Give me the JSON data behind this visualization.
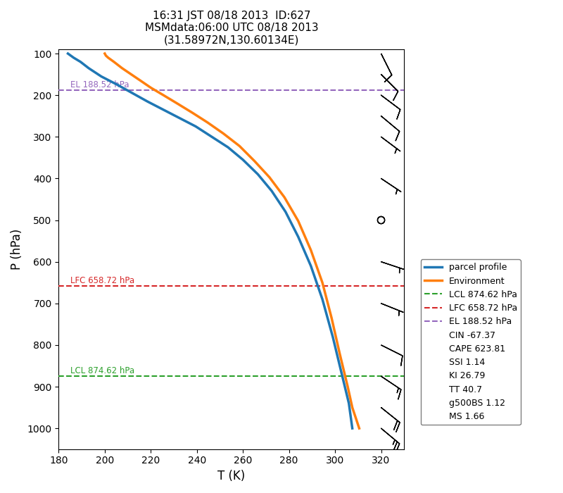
{
  "title": "16:31 JST 08/18 2013  ID:627\nMSMdata:06:00 UTC 08/18 2013\n(31.58972N,130.60134E)",
  "xlabel": "T (K)",
  "ylabel": "P (hPa)",
  "xlim": [
    180,
    330
  ],
  "ylim": [
    1050,
    90
  ],
  "xticks": [
    180,
    200,
    220,
    240,
    260,
    280,
    300,
    320
  ],
  "yticks": [
    100,
    200,
    300,
    400,
    500,
    600,
    700,
    800,
    900,
    1000
  ],
  "parcel_T": [
    184.0,
    186.5,
    189.5,
    193.0,
    198.5,
    205.5,
    212.0,
    218.5,
    225.5,
    232.5,
    239.5,
    246.5,
    253.5,
    260.0,
    266.5,
    272.5,
    278.5,
    284.0,
    289.5,
    294.5,
    299.0,
    302.5,
    306.0,
    307.5
  ],
  "parcel_P": [
    100,
    110,
    120,
    135,
    155,
    175,
    195,
    215,
    235,
    255,
    275,
    300,
    325,
    355,
    390,
    430,
    480,
    540,
    610,
    690,
    780,
    860,
    940,
    1000
  ],
  "env_T": [
    200.0,
    200.5,
    201.5,
    204.0,
    207.5,
    211.5,
    215.5,
    220.0,
    225.5,
    231.5,
    238.0,
    244.5,
    251.5,
    258.5,
    265.0,
    271.5,
    278.0,
    284.0,
    289.5,
    294.5,
    298.5,
    302.0,
    305.5,
    307.5,
    310.5
  ],
  "env_P": [
    100,
    105,
    110,
    120,
    135,
    150,
    165,
    182,
    200,
    220,
    242,
    265,
    292,
    322,
    358,
    397,
    445,
    502,
    572,
    650,
    735,
    820,
    900,
    950,
    1000
  ],
  "lcl_p": 874.62,
  "lfc_p": 658.72,
  "el_p": 188.52,
  "parcel_color": "#1f77b4",
  "env_color": "#ff7f0e",
  "lcl_color": "#2ca02c",
  "lfc_color": "#d62728",
  "el_color": "#9467bd",
  "legend_text_items": [
    "CIN -67.37",
    "CAPE 623.81",
    "SSI 1.14",
    "KI 26.79",
    "TT 40.7",
    "g500BS 1.12",
    "MS 1.66"
  ],
  "barb_pressures": [
    100,
    150,
    200,
    250,
    300,
    400,
    500,
    600,
    700,
    800,
    875,
    950,
    1000
  ],
  "barb_u": [
    -5,
    -8,
    -8,
    -6,
    -4,
    -3,
    -2,
    -3,
    -5,
    -8,
    -12,
    -15,
    -18
  ],
  "barb_v": [
    10,
    8,
    6,
    5,
    3,
    2,
    1,
    1,
    2,
    4,
    8,
    12,
    15
  ]
}
